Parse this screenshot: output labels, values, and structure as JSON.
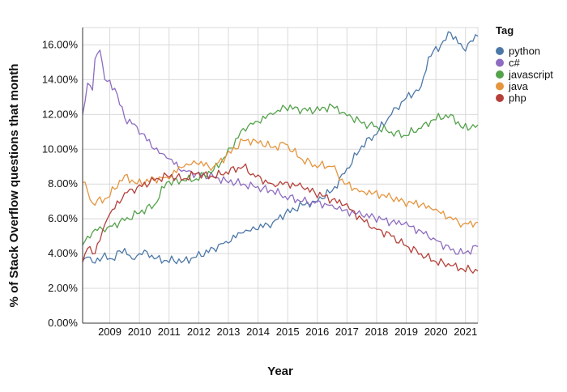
{
  "chart_data": {
    "type": "line",
    "title": "",
    "xlabel": "Year",
    "ylabel": "% of Stack Overflow questions that month",
    "xlim": [
      "2008-08",
      "2021-12"
    ],
    "ylim": [
      0,
      17
    ],
    "y_unit": "percent",
    "x_ticks": [
      "2009",
      "2010",
      "2011",
      "2012",
      "2013",
      "2014",
      "2015",
      "2016",
      "2017",
      "2018",
      "2019",
      "2020",
      "2021"
    ],
    "y_ticks": [
      "0.00%",
      "2.00%",
      "4.00%",
      "6.00%",
      "8.00%",
      "10.00%",
      "12.00%",
      "14.00%",
      "16.00%"
    ],
    "grid": true,
    "legend": {
      "title": "Tag",
      "position": "right"
    },
    "series": [
      {
        "name": "python",
        "color": "#4c78a8",
        "points": [
          [
            "2008-08",
            3.6
          ],
          [
            "2008-10",
            3.8
          ],
          [
            "2008-12",
            3.5
          ],
          [
            "2009-04",
            3.8
          ],
          [
            "2009-08",
            3.7
          ],
          [
            "2010-01",
            4.3
          ],
          [
            "2010-04",
            3.7
          ],
          [
            "2010-09",
            4.2
          ],
          [
            "2011-01",
            3.7
          ],
          [
            "2011-06",
            3.6
          ],
          [
            "2012-01",
            3.6
          ],
          [
            "2012-06",
            3.8
          ],
          [
            "2013-01",
            4.3
          ],
          [
            "2013-06",
            4.7
          ],
          [
            "2014-01",
            5.2
          ],
          [
            "2014-06",
            5.4
          ],
          [
            "2015-01",
            5.8
          ],
          [
            "2015-06",
            6.3
          ],
          [
            "2016-01",
            6.8
          ],
          [
            "2016-06",
            7.0
          ],
          [
            "2017-01",
            7.6
          ],
          [
            "2017-06",
            8.6
          ],
          [
            "2018-01",
            10.2
          ],
          [
            "2018-06",
            10.8
          ],
          [
            "2019-01",
            12.0
          ],
          [
            "2019-06",
            12.8
          ],
          [
            "2020-01",
            13.6
          ],
          [
            "2020-04",
            15.3
          ],
          [
            "2020-09",
            16.0
          ],
          [
            "2021-01",
            16.7
          ],
          [
            "2021-06",
            15.8
          ],
          [
            "2021-12",
            16.5
          ]
        ]
      },
      {
        "name": "c#",
        "color": "#8e6cc0",
        "points": [
          [
            "2008-08",
            12.0
          ],
          [
            "2008-10",
            13.8
          ],
          [
            "2008-12",
            13.4
          ],
          [
            "2009-01",
            15.2
          ],
          [
            "2009-03",
            15.7
          ],
          [
            "2009-05",
            14.0
          ],
          [
            "2009-09",
            13.5
          ],
          [
            "2010-01",
            11.8
          ],
          [
            "2010-06",
            11.3
          ],
          [
            "2011-01",
            10.0
          ],
          [
            "2011-06",
            9.5
          ],
          [
            "2012-01",
            8.8
          ],
          [
            "2012-06",
            8.6
          ],
          [
            "2013-01",
            8.4
          ],
          [
            "2013-06",
            8.2
          ],
          [
            "2014-01",
            8.0
          ],
          [
            "2014-06",
            7.8
          ],
          [
            "2015-01",
            7.6
          ],
          [
            "2015-06",
            7.3
          ],
          [
            "2016-01",
            7.0
          ],
          [
            "2016-06",
            6.9
          ],
          [
            "2017-01",
            6.8
          ],
          [
            "2017-06",
            6.5
          ],
          [
            "2018-01",
            6.2
          ],
          [
            "2018-06",
            6.1
          ],
          [
            "2019-01",
            5.8
          ],
          [
            "2019-06",
            5.7
          ],
          [
            "2020-01",
            5.3
          ],
          [
            "2020-06",
            4.9
          ],
          [
            "2021-01",
            4.2
          ],
          [
            "2021-06",
            4.0
          ],
          [
            "2021-12",
            4.4
          ]
        ]
      },
      {
        "name": "javascript",
        "color": "#54a24b",
        "points": [
          [
            "2008-08",
            4.5
          ],
          [
            "2008-10",
            5.0
          ],
          [
            "2009-01",
            5.4
          ],
          [
            "2009-06",
            5.5
          ],
          [
            "2010-01",
            5.9
          ],
          [
            "2010-06",
            6.3
          ],
          [
            "2011-01",
            6.8
          ],
          [
            "2011-06",
            8.1
          ],
          [
            "2012-01",
            8.2
          ],
          [
            "2012-06",
            8.3
          ],
          [
            "2013-01",
            8.8
          ],
          [
            "2013-06",
            9.6
          ],
          [
            "2014-01",
            11.2
          ],
          [
            "2014-06",
            11.6
          ],
          [
            "2015-01",
            12.0
          ],
          [
            "2015-06",
            12.4
          ],
          [
            "2016-01",
            12.3
          ],
          [
            "2016-06",
            12.2
          ],
          [
            "2017-01",
            12.5
          ],
          [
            "2017-06",
            12.1
          ],
          [
            "2018-01",
            11.5
          ],
          [
            "2018-06",
            11.3
          ],
          [
            "2019-01",
            11.0
          ],
          [
            "2019-06",
            10.8
          ],
          [
            "2020-01",
            11.2
          ],
          [
            "2020-06",
            11.7
          ],
          [
            "2021-01",
            12.0
          ],
          [
            "2021-06",
            11.2
          ],
          [
            "2021-12",
            11.4
          ]
        ]
      },
      {
        "name": "java",
        "color": "#e4953e",
        "points": [
          [
            "2008-08",
            8.1
          ],
          [
            "2008-10",
            7.6
          ],
          [
            "2008-12",
            6.9
          ],
          [
            "2009-06",
            7.2
          ],
          [
            "2010-01",
            8.5
          ],
          [
            "2010-06",
            8.0
          ],
          [
            "2011-01",
            8.3
          ],
          [
            "2011-06",
            8.4
          ],
          [
            "2012-01",
            9.0
          ],
          [
            "2012-06",
            9.2
          ],
          [
            "2013-01",
            9.0
          ],
          [
            "2013-06",
            9.6
          ],
          [
            "2014-01",
            10.5
          ],
          [
            "2014-06",
            10.5
          ],
          [
            "2015-01",
            10.1
          ],
          [
            "2015-06",
            10.3
          ],
          [
            "2016-01",
            9.4
          ],
          [
            "2016-06",
            9.1
          ],
          [
            "2017-01",
            9.0
          ],
          [
            "2017-06",
            8.0
          ],
          [
            "2018-01",
            7.6
          ],
          [
            "2018-06",
            7.5
          ],
          [
            "2019-01",
            7.2
          ],
          [
            "2019-06",
            7.0
          ],
          [
            "2020-01",
            6.8
          ],
          [
            "2020-06",
            6.5
          ],
          [
            "2021-01",
            6.1
          ],
          [
            "2021-06",
            5.7
          ],
          [
            "2021-12",
            5.8
          ]
        ]
      },
      {
        "name": "php",
        "color": "#b5403a",
        "points": [
          [
            "2008-08",
            3.5
          ],
          [
            "2008-10",
            4.3
          ],
          [
            "2009-01",
            4.0
          ],
          [
            "2009-06",
            6.0
          ],
          [
            "2010-01",
            7.5
          ],
          [
            "2010-06",
            7.8
          ],
          [
            "2011-01",
            8.2
          ],
          [
            "2011-06",
            8.5
          ],
          [
            "2012-01",
            8.3
          ],
          [
            "2012-06",
            8.6
          ],
          [
            "2013-01",
            8.4
          ],
          [
            "2013-06",
            8.7
          ],
          [
            "2014-01",
            9.0
          ],
          [
            "2014-06",
            8.4
          ],
          [
            "2015-01",
            8.0
          ],
          [
            "2015-06",
            8.1
          ],
          [
            "2016-01",
            7.8
          ],
          [
            "2016-06",
            7.5
          ],
          [
            "2017-01",
            7.1
          ],
          [
            "2017-06",
            6.8
          ],
          [
            "2018-01",
            6.0
          ],
          [
            "2018-06",
            5.5
          ],
          [
            "2019-01",
            5.0
          ],
          [
            "2019-06",
            4.5
          ],
          [
            "2020-01",
            4.0
          ],
          [
            "2020-06",
            3.6
          ],
          [
            "2021-01",
            3.3
          ],
          [
            "2021-06",
            3.1
          ],
          [
            "2021-12",
            3.0
          ]
        ]
      }
    ]
  }
}
